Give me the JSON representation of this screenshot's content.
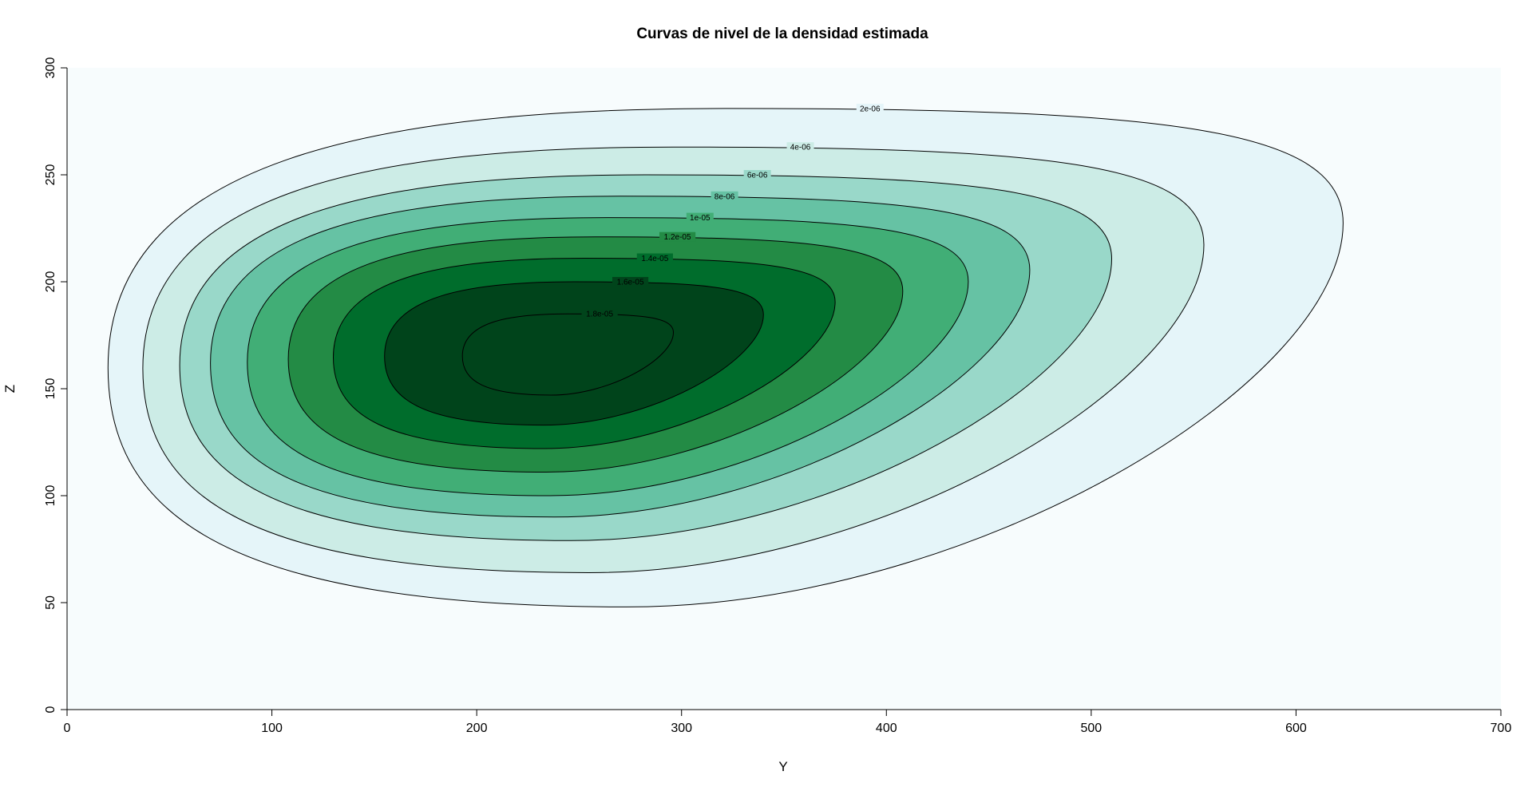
{
  "chart_data": {
    "type": "contour",
    "title": "Curvas de nivel de la densidad estimada",
    "xlabel": "Y",
    "ylabel": "Z",
    "xlim": [
      0,
      700
    ],
    "ylim": [
      0,
      300
    ],
    "xticks": [
      0,
      100,
      200,
      300,
      400,
      500,
      600,
      700
    ],
    "yticks": [
      0,
      50,
      100,
      150,
      200,
      250,
      300
    ],
    "grid": false,
    "colormap": [
      "#f7fcfd",
      "#e5f5f9",
      "#ccece6",
      "#99d8c9",
      "#66c2a4",
      "#41ae76",
      "#238b45",
      "#006d2c",
      "#00441b"
    ],
    "levels": [
      {
        "label": "2e-06",
        "value": 2e-06,
        "fill": "#e5f5f9",
        "y_range": [
          48,
          281
        ],
        "y_min": 20,
        "y_max": 623,
        "label_pos": [
          392,
          281
        ]
      },
      {
        "label": "4e-06",
        "value": 4e-06,
        "fill": "#ccece6",
        "y_range": [
          64,
          263
        ],
        "y_min": 37,
        "y_max": 555,
        "label_pos": [
          358,
          263
        ]
      },
      {
        "label": "6e-06",
        "value": 6e-06,
        "fill": "#99d8c9",
        "y_range": [
          79,
          250
        ],
        "y_min": 55,
        "y_max": 510,
        "label_pos": [
          337,
          250
        ]
      },
      {
        "label": "8e-06",
        "value": 8e-06,
        "fill": "#66c2a4",
        "y_range": [
          90,
          240
        ],
        "y_min": 70,
        "y_max": 470,
        "label_pos": [
          321,
          240
        ]
      },
      {
        "label": "1e-05",
        "value": 1e-05,
        "fill": "#41ae76",
        "y_range": [
          100,
          230
        ],
        "y_min": 88,
        "y_max": 440,
        "label_pos": [
          309,
          230
        ]
      },
      {
        "label": "1.2e-05",
        "value": 1.2e-05,
        "fill": "#238b45",
        "y_range": [
          111,
          221
        ],
        "y_min": 108,
        "y_max": 408,
        "label_pos": [
          298,
          221
        ]
      },
      {
        "label": "1.4e-05",
        "value": 1.4e-05,
        "fill": "#006d2c",
        "y_range": [
          122,
          211
        ],
        "y_min": 130,
        "y_max": 375,
        "label_pos": [
          287,
          211
        ]
      },
      {
        "label": "1.6e-05",
        "value": 1.6e-05,
        "fill": "#00441b",
        "y_range": [
          133,
          200
        ],
        "y_min": 155,
        "y_max": 340,
        "label_pos": [
          275,
          200
        ]
      },
      {
        "label": "1.8e-05",
        "value": 1.8e-05,
        "fill": "#00441b",
        "y_range": [
          147,
          185
        ],
        "y_min": 193,
        "y_max": 296,
        "label_pos": [
          260,
          185
        ]
      }
    ]
  }
}
